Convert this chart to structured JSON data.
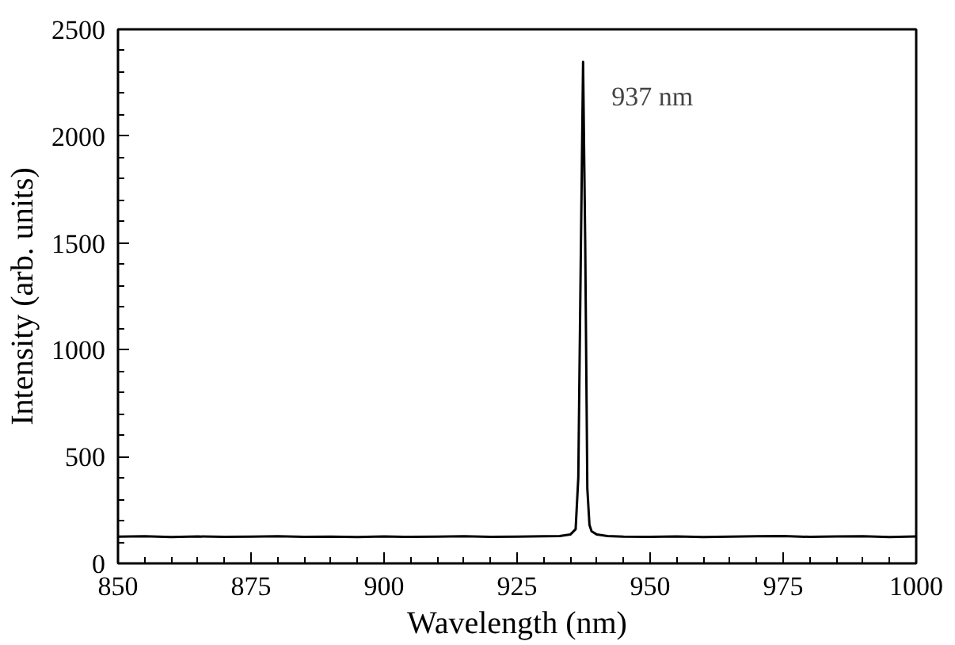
{
  "chart_data": {
    "type": "line",
    "xlabel": "Wavelength (nm)",
    "ylabel": "Intensity (arb. units)",
    "xlim": [
      850,
      1000
    ],
    "ylim": [
      0,
      2500
    ],
    "xticks": [
      850,
      875,
      900,
      925,
      950,
      975,
      1000
    ],
    "yticks": [
      0,
      500,
      1000,
      1500,
      2000,
      2500
    ],
    "grid": false,
    "marker": "none",
    "line_style": "solid",
    "annotations": [
      {
        "text": "937 nm",
        "x": 937.4,
        "y": 2348
      }
    ],
    "series": [
      {
        "color": "#000000",
        "x": [
          850,
          855,
          860,
          865,
          870,
          875,
          880,
          885,
          890,
          895,
          900,
          905,
          910,
          915,
          920,
          925,
          930,
          933,
          935,
          936,
          936.5,
          937,
          937.4,
          937.8,
          938.2,
          938.6,
          939,
          940,
          942,
          945,
          950,
          955,
          960,
          965,
          970,
          975,
          980,
          985,
          990,
          995,
          1000
        ],
        "values": [
          125,
          127,
          123,
          126,
          124,
          125,
          127,
          124,
          125,
          123,
          126,
          124,
          125,
          127,
          124,
          125,
          127,
          128,
          135,
          160,
          400,
          1500,
          2348,
          1500,
          350,
          180,
          150,
          135,
          128,
          125,
          124,
          126,
          123,
          125,
          127,
          128,
          124,
          126,
          127,
          123,
          126
        ]
      }
    ]
  }
}
